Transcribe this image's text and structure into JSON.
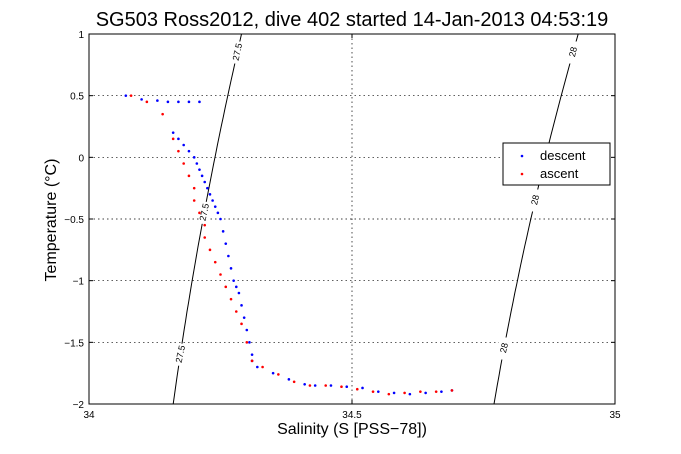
{
  "chart_data": {
    "type": "scatter",
    "title": "SG503 Ross2012, dive 402 started 14-Jan-2013 04:53:19",
    "xlabel": "Salinity (S [PSS−78])",
    "ylabel": "Temperature (°C)",
    "xlim": [
      34,
      35
    ],
    "ylim": [
      -2,
      1
    ],
    "grid": true,
    "x_ticks": [
      34,
      34.5,
      35
    ],
    "x_tick_labels": [
      "34",
      "34.5",
      "35"
    ],
    "y_ticks": [
      -2,
      -1.5,
      -1,
      -0.5,
      0,
      0.5,
      1
    ],
    "y_tick_labels": [
      "−2",
      "−1.5",
      "−1",
      "−0.5",
      "0",
      "0.5",
      "1"
    ],
    "legend_position": "right",
    "series": [
      {
        "name": "descent",
        "color": "#0000ff",
        "x": [
          34.07,
          34.1,
          34.13,
          34.15,
          34.17,
          34.19,
          34.21,
          34.16,
          34.17,
          34.18,
          34.19,
          34.2,
          34.205,
          34.21,
          34.215,
          34.22,
          34.225,
          34.23,
          34.235,
          34.24,
          34.245,
          34.25,
          34.255,
          34.26,
          34.265,
          34.27,
          34.275,
          34.28,
          34.285,
          34.29,
          34.295,
          34.3,
          34.305,
          34.31,
          34.31,
          34.32,
          34.35,
          34.38,
          34.41,
          34.43,
          34.46,
          34.49,
          34.52,
          34.55,
          34.58,
          34.61,
          34.64,
          34.67,
          34.69
        ],
        "y": [
          0.5,
          0.47,
          0.46,
          0.45,
          0.45,
          0.45,
          0.45,
          0.2,
          0.15,
          0.1,
          0.05,
          0.0,
          -0.05,
          -0.1,
          -0.15,
          -0.2,
          -0.25,
          -0.3,
          -0.35,
          -0.4,
          -0.45,
          -0.5,
          -0.6,
          -0.7,
          -0.8,
          -0.9,
          -1.0,
          -1.05,
          -1.1,
          -1.2,
          -1.3,
          -1.4,
          -1.5,
          -1.6,
          -1.65,
          -1.7,
          -1.75,
          -1.8,
          -1.84,
          -1.85,
          -1.85,
          -1.86,
          -1.87,
          -1.9,
          -1.91,
          -1.92,
          -1.91,
          -1.9,
          -1.89
        ]
      },
      {
        "name": "ascent",
        "color": "#ff0000",
        "x": [
          34.08,
          34.11,
          34.14,
          34.16,
          34.17,
          34.18,
          34.19,
          34.2,
          34.2,
          34.21,
          34.22,
          34.22,
          34.23,
          34.24,
          34.25,
          34.26,
          34.27,
          34.28,
          34.29,
          34.3,
          34.31,
          34.33,
          34.36,
          34.39,
          34.42,
          34.45,
          34.48,
          34.51,
          34.54,
          34.57,
          34.6,
          34.63,
          34.66,
          34.69
        ],
        "y": [
          0.5,
          0.45,
          0.35,
          0.15,
          0.05,
          -0.05,
          -0.15,
          -0.25,
          -0.35,
          -0.45,
          -0.55,
          -0.65,
          -0.75,
          -0.85,
          -0.95,
          -1.05,
          -1.15,
          -1.25,
          -1.35,
          -1.5,
          -1.65,
          -1.7,
          -1.76,
          -1.82,
          -1.85,
          -1.85,
          -1.86,
          -1.88,
          -1.9,
          -1.92,
          -1.91,
          -1.9,
          -1.9,
          -1.89
        ]
      }
    ],
    "contours": [
      {
        "label": "27.5",
        "x_top": 34.29,
        "x_bottom": 34.16,
        "label_y": [
          0.85,
          -0.45,
          -1.6
        ]
      },
      {
        "label": "28",
        "x_top": 34.93,
        "x_bottom": 34.77,
        "label_y": [
          0.85,
          -0.35,
          -1.55
        ]
      }
    ]
  }
}
